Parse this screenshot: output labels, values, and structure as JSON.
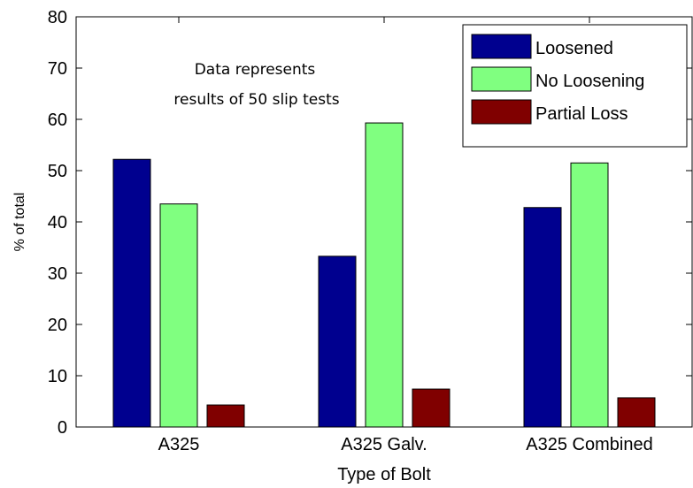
{
  "chart_data": {
    "type": "bar",
    "categories": [
      "A325",
      "A325 Galv.",
      "A325 Combined"
    ],
    "series": [
      {
        "name": "Loosened",
        "color": "#00008f",
        "values": [
          52.2,
          33.3,
          42.8
        ]
      },
      {
        "name": "No Loosening",
        "color": "#80ff80",
        "values": [
          43.5,
          59.3,
          51.5
        ]
      },
      {
        "name": "Partial Loss",
        "color": "#800000",
        "values": [
          4.3,
          7.4,
          5.7
        ]
      }
    ],
    "xlabel": "Type of Bolt",
    "ylabel": "% of total",
    "ylim": [
      0,
      80
    ],
    "yticks": [
      "0",
      "10",
      "20",
      "30",
      "40",
      "50",
      "60",
      "70",
      "80"
    ],
    "yticks_values": [
      0,
      10,
      20,
      30,
      40,
      50,
      60,
      70,
      80
    ],
    "annotation": [
      "Data represents",
      "results of 50 slip tests"
    ],
    "legend_position": "top-right",
    "grid": false
  }
}
